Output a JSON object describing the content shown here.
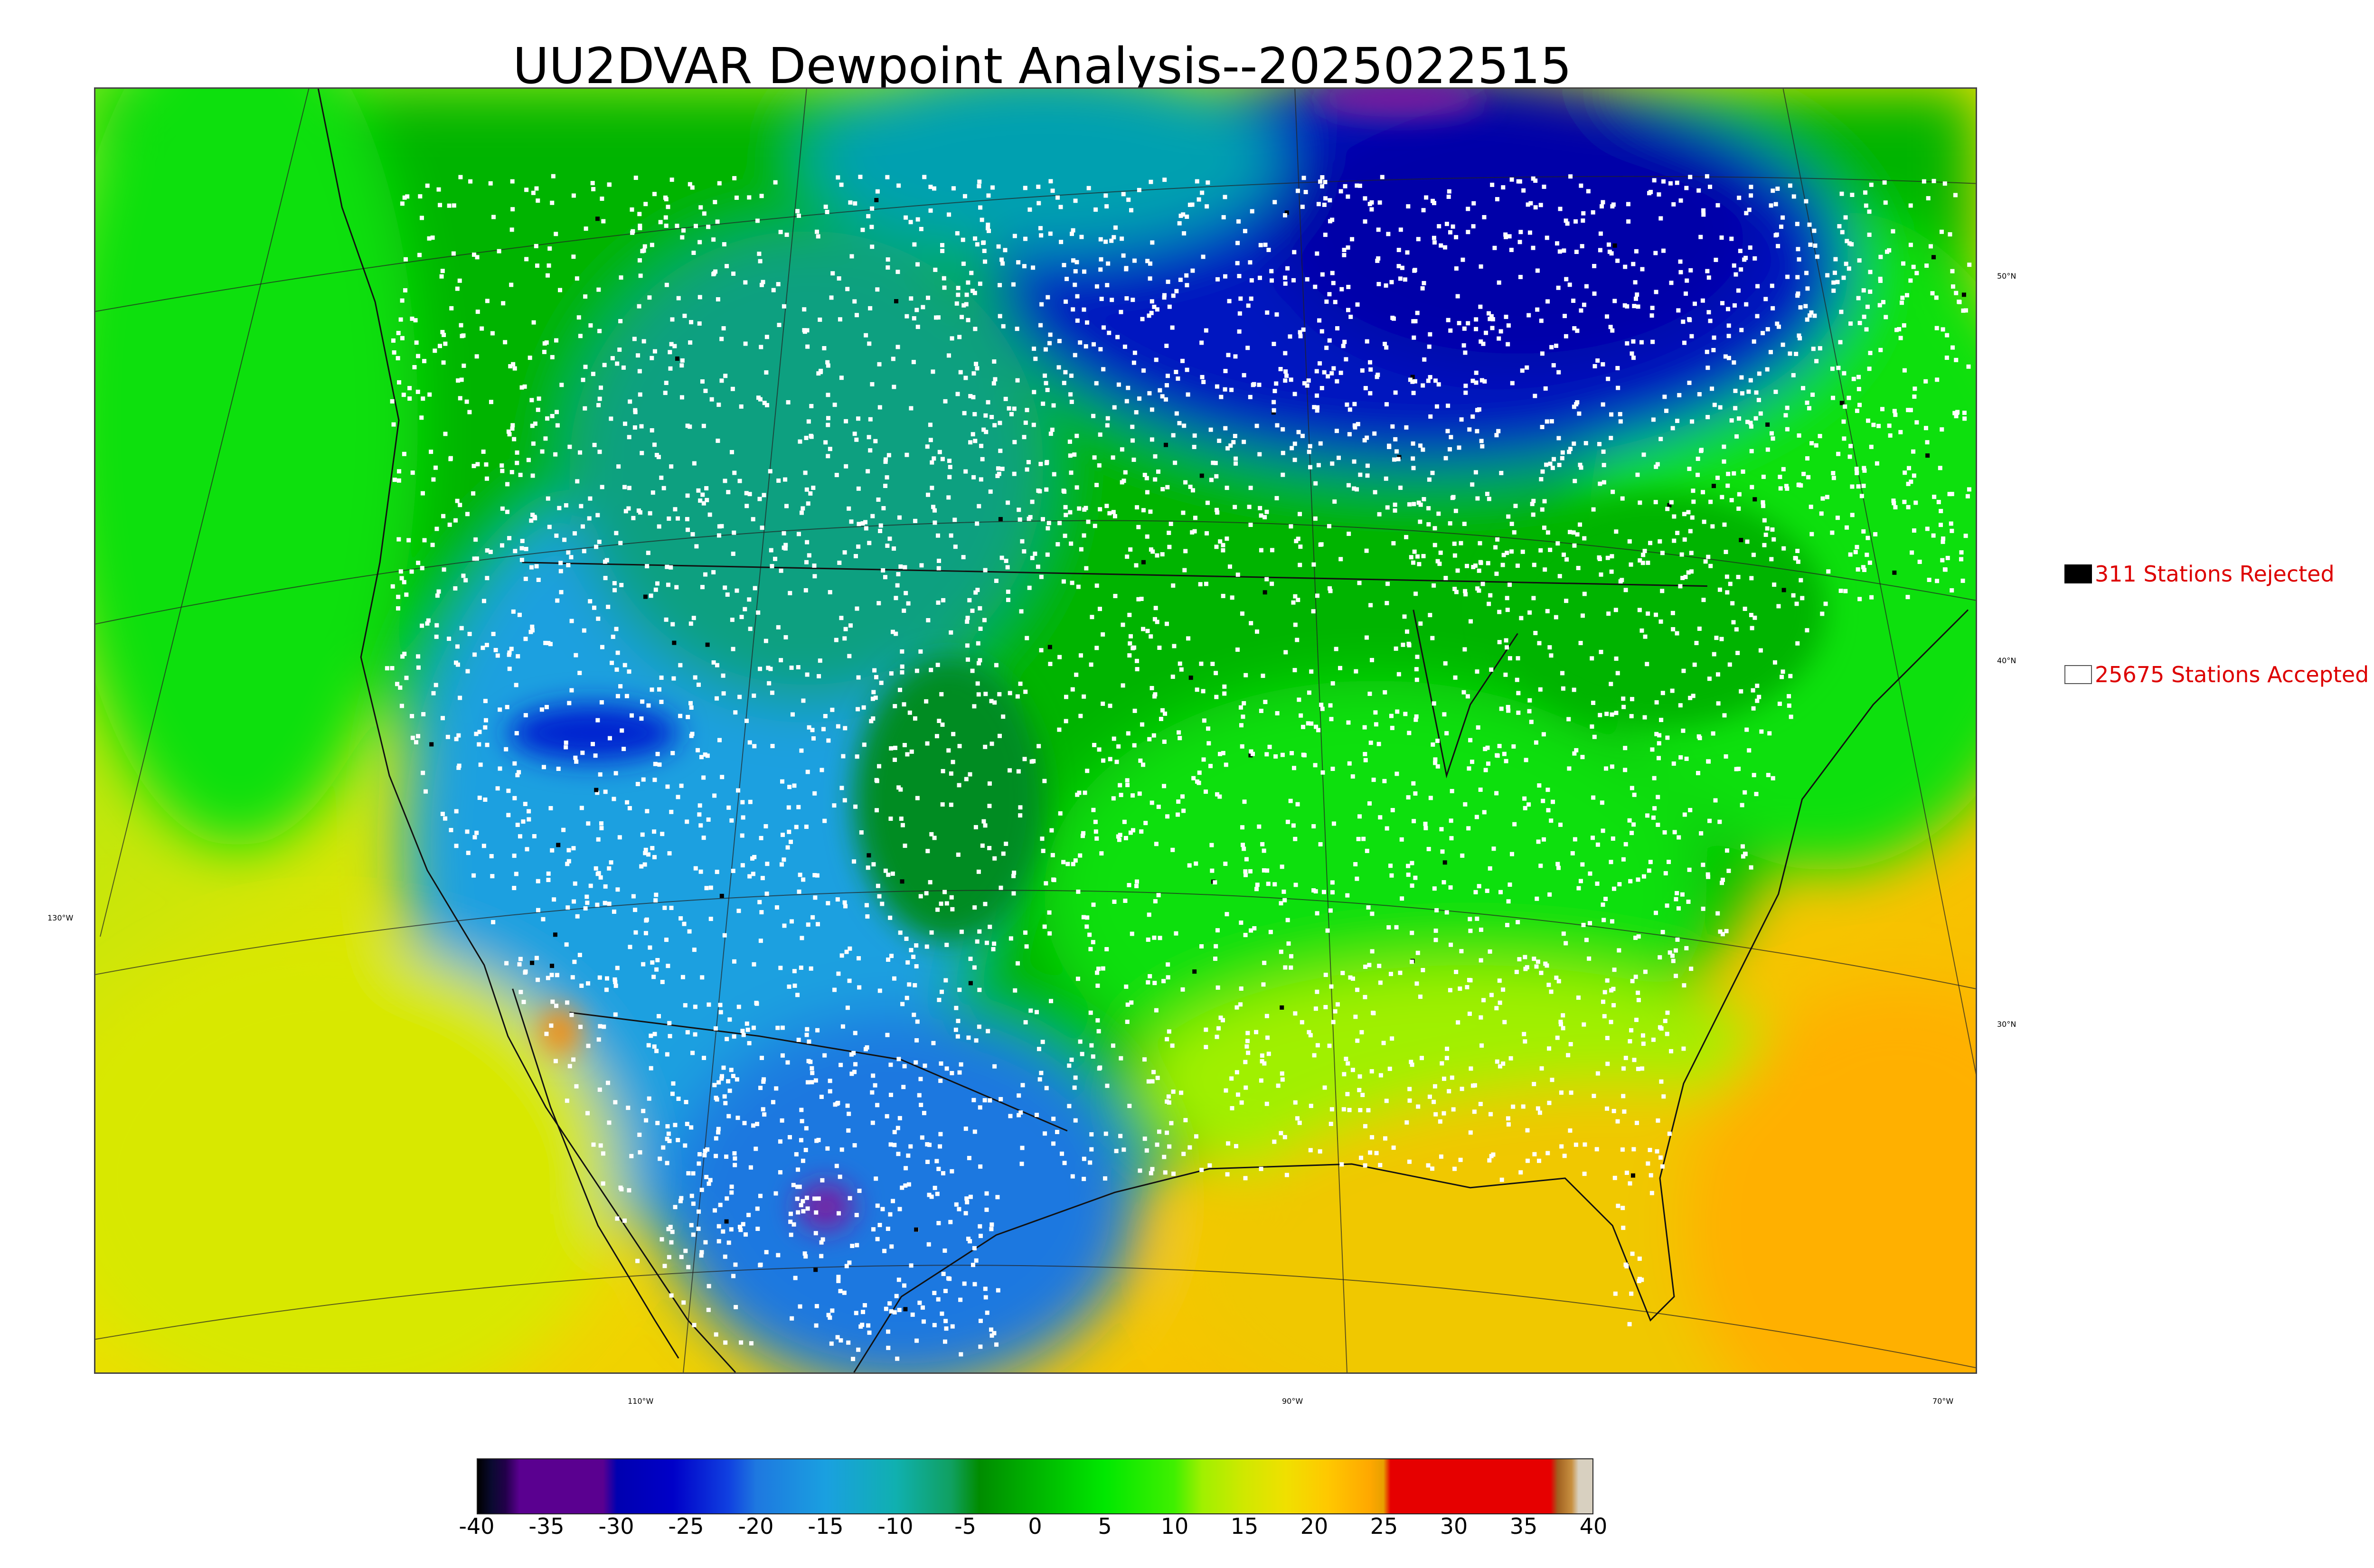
{
  "title": "UU2DVAR Dewpoint Analysis--2025022515",
  "legend": {
    "rejected_label": "311 Stations Rejected",
    "accepted_label": "25675 Stations Accepted",
    "rejected_color": "#000000",
    "accepted_color": "#ffffff",
    "label_color": "#dd0000"
  },
  "latitude_labels": [
    "50°N",
    "40°N",
    "30°N"
  ],
  "longitude_labels": [
    "130°W",
    "110°W",
    "90°W",
    "70°W"
  ],
  "colorbar": {
    "ticks": [
      "-40",
      "-35",
      "-30",
      "-25",
      "-20",
      "-15",
      "-10",
      "-5",
      "0",
      "5",
      "10",
      "15",
      "20",
      "25",
      "30",
      "35",
      "40"
    ],
    "min": -40,
    "max": 40,
    "stops": [
      {
        "v": -40,
        "c": "#000000"
      },
      {
        "v": -39,
        "c": "#0a0a30"
      },
      {
        "v": -38,
        "c": "#22004a"
      },
      {
        "v": -37,
        "c": "#5a0090"
      },
      {
        "v": -31,
        "c": "#5a0090"
      },
      {
        "v": -30,
        "c": "#0000b0"
      },
      {
        "v": -26,
        "c": "#0000c8"
      },
      {
        "v": -22,
        "c": "#1040e0"
      },
      {
        "v": -20,
        "c": "#1e78e0"
      },
      {
        "v": -15,
        "c": "#1aa0e0"
      },
      {
        "v": -10,
        "c": "#10b0b0"
      },
      {
        "v": -6,
        "c": "#10a060"
      },
      {
        "v": -4,
        "c": "#008c00"
      },
      {
        "v": 0,
        "c": "#00b400"
      },
      {
        "v": 5,
        "c": "#00e800"
      },
      {
        "v": 10,
        "c": "#40f000"
      },
      {
        "v": 12,
        "c": "#a0f000"
      },
      {
        "v": 15,
        "c": "#d0e800"
      },
      {
        "v": 18,
        "c": "#f0e000"
      },
      {
        "v": 21,
        "c": "#ffc800"
      },
      {
        "v": 24,
        "c": "#ffa800"
      },
      {
        "v": 25,
        "c": "#e8a000"
      },
      {
        "v": 25.5,
        "c": "#e60000"
      },
      {
        "v": 37,
        "c": "#e60000"
      },
      {
        "v": 37.5,
        "c": "#a06020"
      },
      {
        "v": 38.5,
        "c": "#c89040"
      },
      {
        "v": 39,
        "c": "#d8d0c0"
      },
      {
        "v": 40,
        "c": "#d8d0c0"
      }
    ]
  },
  "map_colors": {
    "ocean_warm": "#f0c800",
    "ocean_hot": "#ffb000",
    "ocean_cool": "#c0e800",
    "land_green": "#00b400",
    "land_bright": "#10e010",
    "land_dark": "#008c20",
    "southwest_blue": "#1aa0e0",
    "cold_blue": "#0018c0",
    "deep_blue": "#0000a8",
    "arctic_purple": "#7a1aa0",
    "coast_line": "#111111",
    "station_accepted": "#ffffff",
    "station_rejected": "#000000"
  }
}
